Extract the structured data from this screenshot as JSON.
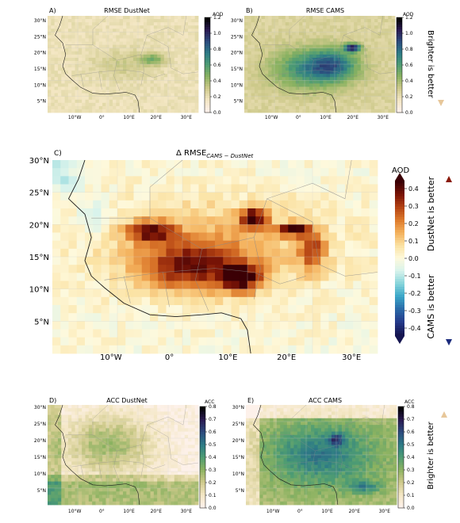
{
  "panels": {
    "A": {
      "letter": "A)",
      "title": "RMSE DustNet",
      "cbar_unit": "AOD",
      "cbar_ticks": [
        "1.2",
        "1.0",
        "0.8",
        "0.6",
        "0.4",
        "0.2",
        "0.0"
      ]
    },
    "B": {
      "letter": "B)",
      "title": "RMSE CAMS",
      "cbar_unit": "AOD",
      "cbar_ticks": [
        "1.2",
        "1.0",
        "0.8",
        "0.6",
        "0.4",
        "0.2",
        "0.0"
      ],
      "side_label": "Brighter is better"
    },
    "C": {
      "letter": "C)",
      "title_main": "Δ RMSE",
      "title_sub": "CAMS − DustNet",
      "cbar_unit": "AOD",
      "cbar_ticks": [
        "0.4",
        "0.3",
        "0.2",
        "0.1",
        "0.0",
        "-0.1",
        "-0.2",
        "-0.3",
        "-0.4"
      ],
      "label_top": "DustNet is better",
      "label_bottom": "CAMS is better"
    },
    "D": {
      "letter": "D)",
      "title": "ACC DustNet",
      "cbar_unit": "ACC",
      "cbar_ticks": [
        "0.8",
        "0.7",
        "0.6",
        "0.5",
        "0.4",
        "0.3",
        "0.2",
        "0.1",
        "0.0"
      ]
    },
    "E": {
      "letter": "E)",
      "title": "ACC CAMS",
      "cbar_unit": "ACC",
      "cbar_ticks": [
        "0.8",
        "0.7",
        "0.6",
        "0.5",
        "0.4",
        "0.3",
        "0.2",
        "0.1",
        "0.0"
      ],
      "side_label": "Brighter is better"
    }
  },
  "lat_ticks": [
    "30°N",
    "25°N",
    "20°N",
    "15°N",
    "10°N",
    "5°N"
  ],
  "lon_ticks": [
    "10°W",
    "0°",
    "10°E",
    "20°E",
    "30°E"
  ],
  "colors": {
    "rmse_scale": [
      "#fdf1ea",
      "#f3e6c2",
      "#cdc98a",
      "#8bb261",
      "#4e9c73",
      "#2d7b86",
      "#2c4c7e",
      "#2a1a52",
      "#000000"
    ],
    "delta_pos": [
      "#fef9dc",
      "#fbe2a3",
      "#f4b15c",
      "#dd7a2c",
      "#b44313",
      "#7a1406",
      "#3b0005"
    ],
    "delta_neg": [
      "#fef9dc",
      "#d8f3ec",
      "#86d4da",
      "#3aa6c8",
      "#2a6aa8",
      "#253a8a",
      "#151550"
    ],
    "acc_scale": [
      "#000000",
      "#2a1a52",
      "#2c4c7e",
      "#2d7b86",
      "#4e9c73",
      "#8bb261",
      "#cdc98a",
      "#f3e6c2",
      "#fdf1ea"
    ],
    "arrow_dark_red": "#8a1a0b",
    "arrow_dark_blue": "#1a2a7c",
    "arrow_tan": "#e7c79a",
    "coast": "#1a1a1a"
  }
}
